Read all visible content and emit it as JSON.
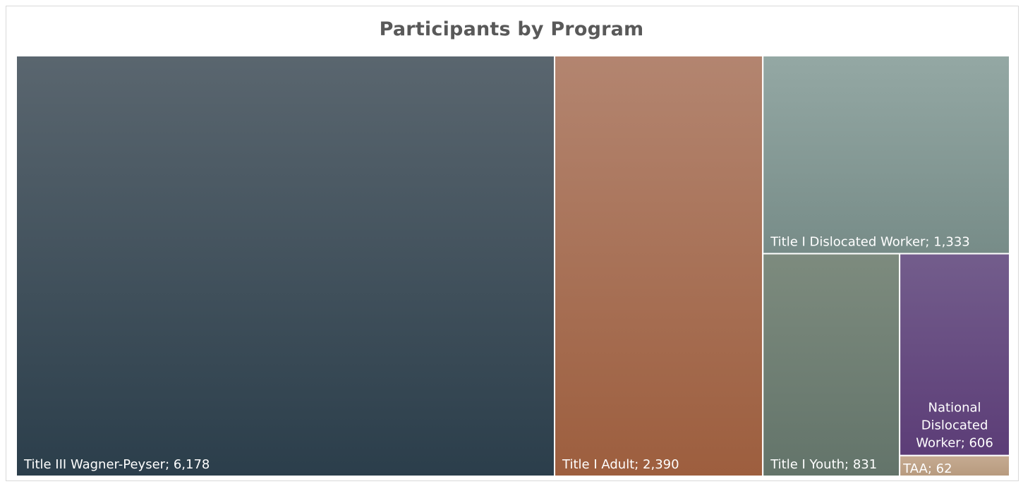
{
  "chart_data": {
    "type": "treemap",
    "title": "Participants by Program",
    "items": [
      {
        "name": "Title III Wagner-Peyser",
        "value": 6178,
        "label": "Title III Wagner-Peyser; 6,178",
        "color_top": "#5a666f",
        "color_bottom": "#2b3e4b"
      },
      {
        "name": "Title I Adult",
        "value": 2390,
        "label": "Title I Adult; 2,390",
        "color_top": "#b38570",
        "color_bottom": "#9d5e3e"
      },
      {
        "name": "Title I Dislocated Worker",
        "value": 1333,
        "label": "Title I Dislocated Worker; 1,333",
        "color_top": "#94a8a4",
        "color_bottom": "#778c88"
      },
      {
        "name": "Title I Youth",
        "value": 831,
        "label": "Title I Youth; 831",
        "color_top": "#7d8b7e",
        "color_bottom": "#63746a"
      },
      {
        "name": "National Dislocated Worker",
        "value": 606,
        "label": "National Dislocated Worker; 606",
        "label_lines": [
          "National",
          "Dislocated",
          "Worker; 606"
        ],
        "color_top": "#735d8c",
        "color_bottom": "#5c3d77"
      },
      {
        "name": "TAA",
        "value": 62,
        "label": "TAA; 62",
        "color_top": "#c6ab92",
        "color_bottom": "#b79a7e"
      }
    ]
  }
}
